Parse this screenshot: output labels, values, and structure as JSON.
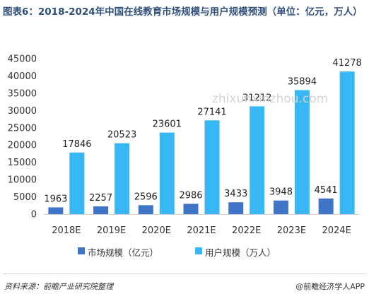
{
  "title": "图表6：2018-2024年中国在线教育市场规模与用户规模预测（单位：亿元，万人）",
  "watermark": "zhixunxinzhou.com",
  "source": "资料来源：前瞻产业研究院整理",
  "brand": "@前瞻经济学人APP",
  "colors": {
    "market": "#3f74c6",
    "users": "#37b7f3",
    "axis_text": "#333333",
    "title": "#2f4f79"
  },
  "chart_data": {
    "type": "bar",
    "categories": [
      "2018E",
      "2019E",
      "2020E",
      "2021E",
      "2022E",
      "2023E",
      "2024E"
    ],
    "series": [
      {
        "name": "市场规模（亿元）",
        "values": [
          1963,
          2257,
          2596,
          2986,
          3433,
          3948,
          4541
        ]
      },
      {
        "name": "用户规模（万人）",
        "values": [
          17846,
          20523,
          23601,
          27141,
          31212,
          35894,
          41278
        ]
      }
    ],
    "ylim": [
      0,
      45000
    ],
    "yticks": [
      0,
      5000,
      10000,
      15000,
      20000,
      25000,
      30000,
      35000,
      40000,
      45000
    ],
    "grid": false,
    "legend": "bottom"
  }
}
